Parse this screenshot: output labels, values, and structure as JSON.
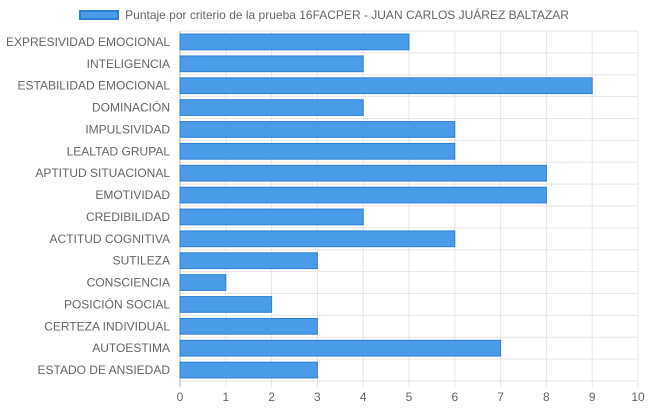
{
  "chart_data": {
    "type": "bar",
    "orientation": "horizontal",
    "series": [
      {
        "name": "Puntaje por criterio de la prueba 16FACPER - JUAN CARLOS JUÁREZ BALTAZAR",
        "values": [
          5,
          4,
          9,
          4,
          6,
          6,
          8,
          8,
          4,
          6,
          3,
          1,
          2,
          3,
          7,
          3
        ]
      }
    ],
    "categories": [
      "EXPRESIVIDAD EMOCIONAL",
      "INTELIGENCIA",
      "ESTABILIDAD EMOCIONAL",
      "DOMINACIÓN",
      "IMPULSIVIDAD",
      "LEALTAD GRUPAL",
      "APTITUD SITUACIONAL",
      "EMOTIVIDAD",
      "CREDIBILIDAD",
      "ACTITUD COGNITIVA",
      "SUTILEZA",
      "CONSCIENCIA",
      "POSICIÓN SOCIAL",
      "CERTEZA INDIVIDUAL",
      "AUTOESTIMA",
      "ESTADO DE ANSIEDAD"
    ],
    "xlim": [
      0,
      10
    ],
    "xticks": [
      "0",
      "1",
      "2",
      "3",
      "4",
      "5",
      "6",
      "7",
      "8",
      "9",
      "10"
    ],
    "grid": true,
    "legend_position": "top",
    "colors": {
      "bar_fill": "#4a9be8",
      "bar_border": "#2d7fd6",
      "grid": "#e6e6e6",
      "axis_text": "#666666"
    }
  }
}
